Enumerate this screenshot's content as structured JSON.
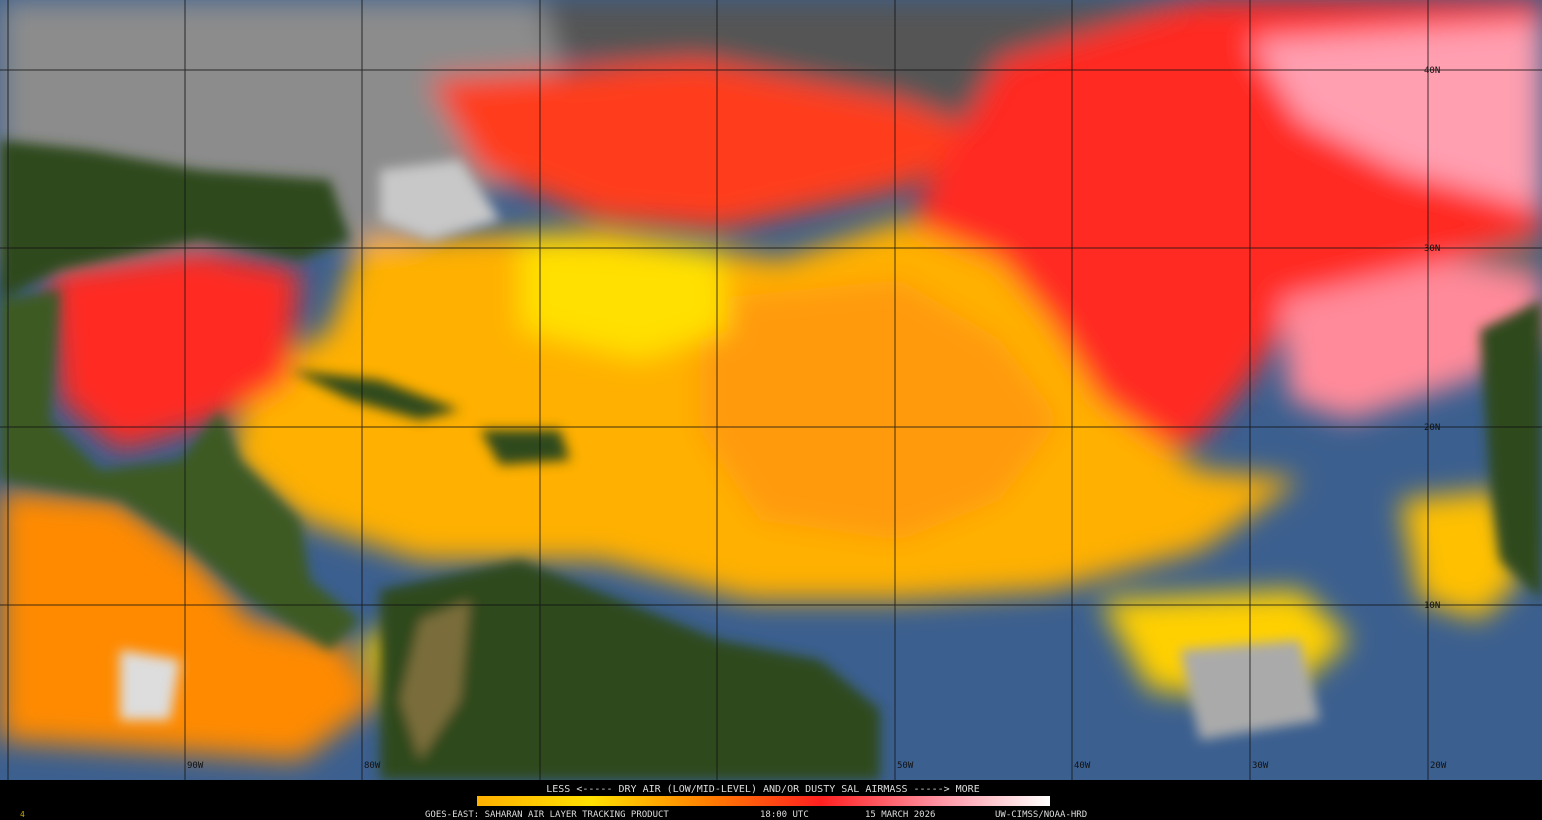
{
  "map": {
    "latitude_labels": [
      "40N",
      "30N",
      "20N",
      "10N"
    ],
    "longitude_labels": [
      "90W",
      "80W",
      "50W",
      "40W",
      "30W",
      "20W"
    ]
  },
  "legend": {
    "text": "LESS <----- DRY AIR (LOW/MID-LEVEL) AND/OR DUSTY SAL AIRMASS -----> MORE"
  },
  "footer": {
    "frame": "4",
    "product": "GOES-EAST: SAHARAN AIR LAYER TRACKING PRODUCT",
    "time": "18:00 UTC",
    "date": "15 MARCH 2026",
    "credit": "UW-CIMSS/NOAA-HRD"
  }
}
